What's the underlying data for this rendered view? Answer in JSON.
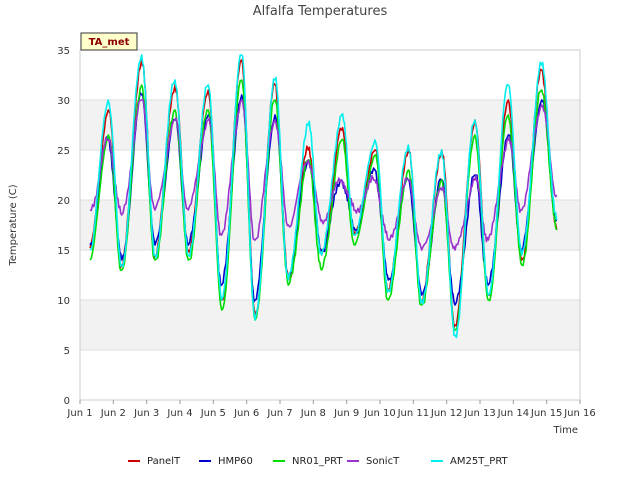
{
  "chart_data": {
    "type": "line",
    "title": "Alfalfa Temperatures",
    "xlabel": "Time",
    "ylabel": "Temperature (C)",
    "badge": "TA_met",
    "ylim": [
      0,
      35
    ],
    "xlim": [
      1,
      16
    ],
    "yticks": [
      0,
      5,
      10,
      15,
      20,
      25,
      30,
      35
    ],
    "xticks": [
      1,
      2,
      3,
      4,
      5,
      6,
      7,
      8,
      9,
      10,
      11,
      12,
      13,
      14,
      15,
      16
    ],
    "xtick_labels": [
      "Jun 1",
      "Jun 2",
      "Jun 3",
      "Jun 4",
      "Jun 5",
      "Jun 6",
      "Jun 7",
      "Jun 8",
      "Jun 9",
      "Jun 10",
      "Jun 11",
      "Jun 12",
      "Jun 13",
      "Jun 14",
      "Jun 15",
      "Jun 16"
    ],
    "grid": true,
    "legend_position": "bottom",
    "daily_min_times": [
      1.3,
      2.25,
      3.25,
      4.25,
      5.25,
      6.25,
      7.25,
      8.25,
      9.25,
      10.25,
      11.25,
      12.25,
      13.25,
      14.25,
      15.3
    ],
    "daily_max_times": [
      1.85,
      2.85,
      3.85,
      4.85,
      5.85,
      6.85,
      7.85,
      8.85,
      9.85,
      10.85,
      11.85,
      12.85,
      13.85,
      14.85
    ],
    "series": [
      {
        "name": "PanelT",
        "color": "#cc0000",
        "mins": [
          15.2,
          13.5,
          14.5,
          15.0,
          10.0,
          8.5,
          12.0,
          14.5,
          16.5,
          11.0,
          10.0,
          7.5,
          10.5,
          14.0,
          17.0
        ],
        "maxs": [
          29.0,
          34.0,
          31.5,
          31.0,
          34.0,
          31.5,
          25.0,
          27.0,
          25.0,
          25.0,
          25.0,
          28.0,
          30.0,
          33.0
        ]
      },
      {
        "name": "HMP60",
        "color": "#0000cc",
        "mins": [
          15.5,
          14.0,
          15.5,
          15.5,
          11.5,
          10.0,
          12.5,
          15.0,
          17.0,
          12.0,
          10.5,
          9.5,
          11.5,
          15.0,
          18.0
        ],
        "maxs": [
          26.0,
          30.5,
          28.0,
          28.5,
          30.5,
          28.5,
          24.0,
          22.0,
          23.0,
          22.0,
          22.0,
          22.5,
          26.5,
          30.0
        ]
      },
      {
        "name": "NR01_PRT",
        "color": "#00dd00",
        "mins": [
          14.0,
          13.0,
          14.0,
          14.0,
          9.0,
          8.0,
          11.5,
          13.0,
          15.5,
          10.0,
          9.5,
          7.0,
          10.0,
          13.5,
          17.0
        ],
        "maxs": [
          26.5,
          31.5,
          29.0,
          29.0,
          32.0,
          30.0,
          24.0,
          26.0,
          24.5,
          23.0,
          22.0,
          26.5,
          28.5,
          31.0
        ]
      },
      {
        "name": "SonicT",
        "color": "#9933cc",
        "mins": [
          19.0,
          18.5,
          19.0,
          19.0,
          16.5,
          16.0,
          17.5,
          18.0,
          19.0,
          16.0,
          15.0,
          15.0,
          16.0,
          19.0,
          20.5
        ],
        "maxs": [
          26.0,
          30.0,
          28.0,
          28.0,
          30.0,
          28.0,
          24.0,
          22.0,
          22.0,
          22.0,
          21.0,
          22.0,
          26.0,
          29.5
        ]
      },
      {
        "name": "AM25T_PRT",
        "color": "#00eeee",
        "mins": [
          15.0,
          13.5,
          14.5,
          14.5,
          10.0,
          8.0,
          12.0,
          14.5,
          16.5,
          11.0,
          10.0,
          6.5,
          10.5,
          14.5,
          18.0
        ],
        "maxs": [
          30.0,
          34.5,
          32.0,
          31.5,
          34.5,
          32.0,
          27.5,
          28.5,
          26.0,
          25.5,
          25.0,
          28.0,
          31.5,
          33.5
        ]
      }
    ]
  }
}
